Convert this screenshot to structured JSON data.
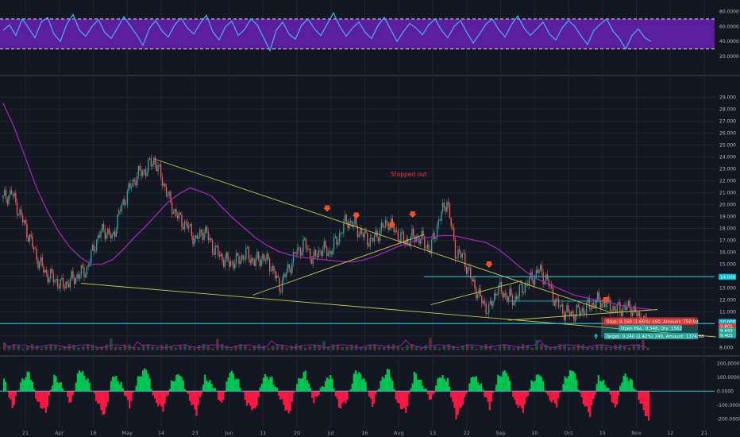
{
  "colors": {
    "background": "#131722",
    "rsi_line": "#4aa3f0",
    "rsi_band_fill": "#5b1e9e",
    "ma_line": "#9c27b0",
    "trendline": "#c8c84a",
    "level_line": "#26c6da",
    "arrow": "#f4511e",
    "candle_up": "#26a69a",
    "candle_down": "#ef5350",
    "osc_up": "#00c853",
    "osc_down": "#ff1744"
  },
  "chart_data": [
    {
      "type": "line",
      "title": "",
      "ylim": [
        0,
        90
      ],
      "y_ticks": [
        "80.0000",
        "60.0000",
        "40.0000",
        "20.0000"
      ],
      "band": [
        30,
        70
      ],
      "series": [
        {
          "values": [
            55,
            62,
            48,
            70,
            58,
            45,
            66,
            72,
            50,
            40,
            63,
            76,
            55,
            47,
            60,
            69,
            52,
            44,
            58,
            73,
            61,
            49,
            35,
            57,
            68,
            54,
            46,
            62,
            71,
            58,
            50,
            64,
            75,
            53,
            42,
            60,
            67,
            48,
            56,
            70,
            62,
            45,
            28,
            55,
            66,
            50,
            43,
            62,
            70,
            57,
            48,
            63,
            78,
            60,
            47,
            58,
            66,
            52,
            44,
            61,
            72,
            56,
            40,
            53,
            64,
            58,
            49,
            62,
            70,
            55,
            45,
            60,
            68,
            52,
            38,
            50,
            63,
            70,
            56,
            46,
            62,
            74,
            58,
            48,
            57,
            66,
            50,
            42,
            58,
            68,
            60,
            47,
            36,
            55,
            63,
            70,
            54,
            44,
            30,
            48,
            57,
            45,
            40
          ]
        }
      ]
    },
    {
      "type": "line",
      "title": "",
      "ylim": [
        7.5,
        30.5
      ],
      "y_ticks": [
        "29.000",
        "28.000",
        "27.000",
        "26.000",
        "25.000",
        "24.000",
        "23.000",
        "22.000",
        "21.000",
        "20.000",
        "19.000",
        "18.000",
        "17.000",
        "16.000",
        "15.000",
        "14.000",
        "13.000",
        "12.000",
        "11.000",
        "10.000",
        "9.000",
        "8.000"
      ],
      "x_ticks": [
        "21",
        "Apr",
        "16",
        "May",
        "14",
        "23",
        "Jun",
        "11",
        "20",
        "Jul",
        "16",
        "Aug",
        "13",
        "22",
        "Sep",
        "10",
        "Oct",
        "15",
        "Nov",
        "12",
        "21"
      ],
      "series": [
        {
          "values": [
            20.5,
            21.0,
            19.2,
            17.5,
            15.6,
            14.3,
            13.8,
            13.2,
            13.6,
            14.1,
            14.6,
            16.8,
            18.0,
            17.1,
            19.6,
            21.2,
            22.5,
            22.9,
            23.8,
            22.1,
            20.0,
            18.8,
            18.2,
            17.0,
            17.9,
            16.5,
            15.6,
            15.1,
            15.3,
            15.9,
            15.2,
            15.6,
            14.9,
            13.1,
            14.5,
            16.0,
            16.7,
            15.4,
            16.3,
            16.0,
            17.2,
            18.7,
            18.2,
            17.4,
            16.9,
            17.8,
            18.6,
            17.6,
            16.9,
            17.3,
            17.1,
            16.2,
            18.6,
            20.4,
            16.1,
            15.5,
            13.6,
            12.1,
            11.1,
            13.0,
            12.4,
            12.0,
            13.0,
            13.7,
            14.5,
            13.6,
            11.8,
            11.0,
            10.8,
            11.1,
            11.5,
            11.9,
            11.7,
            11.2,
            11.3,
            11.4,
            10.4,
            10.1
          ]
        },
        {
          "values": [
            28.5,
            26.5,
            24.0,
            21.5,
            19.5,
            17.8,
            16.5,
            15.6,
            15.0,
            15.0,
            15.4,
            16.3,
            17.3,
            18.2,
            19.2,
            20.2,
            20.9,
            21.4,
            21.1,
            20.7,
            19.7,
            18.8,
            18.0,
            17.2,
            16.6,
            16.1,
            15.8,
            15.6,
            15.5,
            15.4,
            15.3,
            15.2,
            15.2,
            15.4,
            15.7,
            16.1,
            16.5,
            16.8,
            17.1,
            17.3,
            17.4,
            17.4,
            17.2,
            17.0,
            16.8,
            16.3,
            15.6,
            14.8,
            14.1,
            13.6,
            13.2,
            12.8,
            12.4,
            12.2,
            12.0,
            11.8,
            11.6,
            11.4,
            11.3,
            11.2
          ]
        }
      ],
      "levels": [
        13.95,
        10.02
      ],
      "price_tags": [
        "14.000",
        "10.000",
        "10.000",
        "9.801",
        "9.443",
        "9.403"
      ],
      "annotation": "Stopped out",
      "trade_box": {
        "stop": "Stop: 0.160 (1.66%) 160, Amount: 750.08",
        "open": "Open P&L: 0.548, Qty: 1562",
        "target": "Target: 0.240 (2.42%) 240, Amount: 1374.88"
      }
    },
    {
      "type": "area",
      "title": "",
      "ylim": [
        -250,
        230
      ],
      "y_ticks": [
        "200.0000",
        "100.0000",
        "0.0000",
        "-100.0000",
        "-200.0000"
      ],
      "series": [
        {
          "values": [
            90,
            -120,
            60,
            140,
            -80,
            -150,
            110,
            30,
            -90,
            160,
            80,
            -60,
            -180,
            120,
            50,
            -110,
            90,
            170,
            -70,
            -130,
            60,
            130,
            -40,
            -160,
            100,
            40,
            -100,
            150,
            70,
            -90,
            -140,
            110,
            90,
            -50,
            -170,
            60,
            140,
            -80,
            30,
            120,
            -120,
            -60,
            150,
            90,
            -110,
            70,
            160,
            -90,
            -150,
            130,
            50,
            -70,
            110,
            80,
            -190,
            -60,
            120,
            40,
            -120,
            100,
            150,
            -80,
            -140,
            60,
            130,
            -50,
            -100,
            90,
            160,
            -60,
            -170,
            100,
            40,
            -130,
            120,
            70,
            -80,
            -220
          ]
        }
      ]
    }
  ]
}
